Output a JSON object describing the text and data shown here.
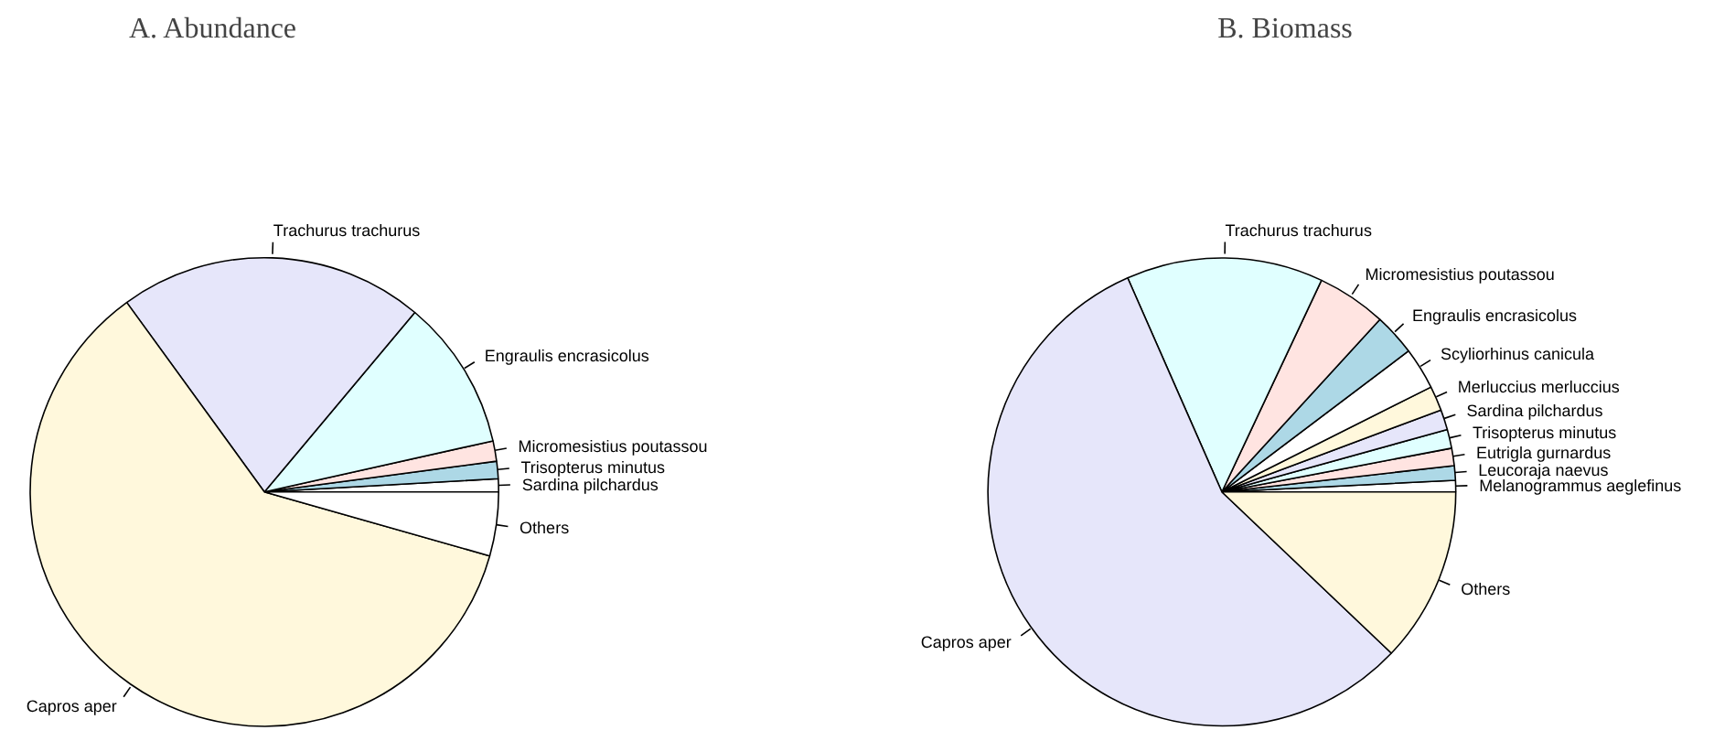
{
  "chart_data": [
    {
      "type": "pie",
      "title": "A.    Abundance",
      "categories": [
        "Sardina pilchardus",
        "Trisopterus minutus",
        "Micromesistius poutassou",
        "Engraulis encrasicolus",
        "Trachurus trachurus",
        "Capros aper",
        "Others"
      ],
      "values": [
        0.9,
        1.2,
        1.4,
        10.4,
        21.1,
        60.6,
        4.4
      ],
      "colors": [
        "#ffffff",
        "#add8e6",
        "#ffe4e1",
        "#e0ffff",
        "#e6e6fa",
        "#fff8dc",
        "#ffffff"
      ]
    },
    {
      "type": "pie",
      "title": "B. Biomass",
      "categories": [
        "Melanogrammus aeglefinus",
        "Leucoraja naevus",
        "Eutrigla gurnardus",
        "Trisopterus minutus",
        "Sardina pilchardus",
        "Merluccius merluccius",
        "Scyliorhinus canicula",
        "Engraulis encrasicolus",
        "Micromesistius poutassou",
        "Trachurus trachurus",
        "Capros aper",
        "Others"
      ],
      "values": [
        0.8,
        1.0,
        1.2,
        1.3,
        1.4,
        1.7,
        2.9,
        2.9,
        4.8,
        13.6,
        56.3,
        12.1
      ],
      "colors": [
        "#ffffff",
        "#add8e6",
        "#ffe4e1",
        "#e0ffff",
        "#e6e6fa",
        "#fff8dc",
        "#ffffff",
        "#add8e6",
        "#ffe4e1",
        "#e0ffff",
        "#e6e6fa",
        "#fff8dc"
      ]
    }
  ]
}
